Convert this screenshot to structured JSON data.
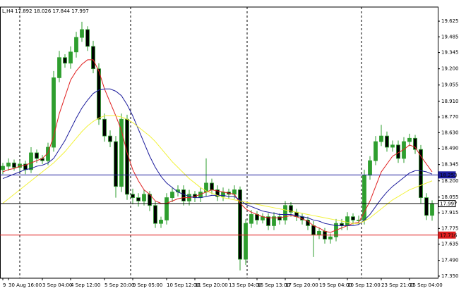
{
  "chart_data": {
    "type": "candlestick",
    "header": "L,H4",
    "categories": [
      "9",
      "30 Aug 16:00",
      null,
      null,
      null,
      null,
      null,
      "3 Sep 04:00",
      null,
      null,
      null,
      null,
      "4 Sep 12:00",
      null,
      null,
      null,
      null,
      null,
      "5 Sep 20:00",
      null,
      null,
      null,
      null,
      "9 Sep 05:00",
      null,
      null,
      null,
      null,
      null,
      "10 Sep 12:00",
      null,
      null,
      null,
      null,
      "11 Sep 20:00",
      null,
      null,
      null,
      null,
      null,
      "13 Sep 04:00",
      null,
      null,
      null,
      null,
      "16 Sep 13:00",
      null,
      null,
      null,
      null,
      "17 Sep 20:00",
      null,
      null,
      null,
      null,
      null,
      "19 Sep 04:00",
      null,
      null,
      null,
      null,
      "20 Sep 12:00",
      null,
      null,
      null,
      null,
      null,
      "23 Sep 21:00",
      null,
      null,
      null,
      null,
      "25 Sep 04:00",
      null,
      null,
      null,
      null
    ],
    "open": [
      18.3,
      18.33,
      18.36,
      18.32,
      18.35,
      18.3,
      18.45,
      18.4,
      18.38,
      18.5,
      19.12,
      19.3,
      19.25,
      19.35,
      19.48,
      19.55,
      19.4,
      19.2,
      18.75,
      18.6,
      18.55,
      18.15,
      18.75,
      18.08,
      18.05,
      18.02,
      18.08,
      17.98,
      17.82,
      17.85,
      18.05,
      18.1,
      18.12,
      18.02,
      18.08,
      18.05,
      18.1,
      18.18,
      18.12,
      18.06,
      18.1,
      18.08,
      18.12,
      17.5,
      17.82,
      17.9,
      17.85,
      17.88,
      17.8,
      17.88,
      17.85,
      17.98,
      17.92,
      17.88,
      17.85,
      17.8,
      17.72,
      17.75,
      17.68,
      17.7,
      17.82,
      17.8,
      17.88,
      17.85,
      17.85,
      18.25,
      18.38,
      18.55,
      18.6,
      18.5,
      18.52,
      18.4,
      18.55,
      18.58,
      18.48,
      18.05,
      17.892
    ],
    "high": [
      18.36,
      18.4,
      18.39,
      18.38,
      18.38,
      18.5,
      18.48,
      18.43,
      18.54,
      19.18,
      19.36,
      19.33,
      19.4,
      19.53,
      19.62,
      19.58,
      19.45,
      19.25,
      18.8,
      18.65,
      18.6,
      18.8,
      18.79,
      18.13,
      18.09,
      18.12,
      18.11,
      18.02,
      17.88,
      18.09,
      18.14,
      18.16,
      18.16,
      18.12,
      18.11,
      18.14,
      18.4,
      18.22,
      18.16,
      18.14,
      18.13,
      18.16,
      18.15,
      17.86,
      17.94,
      17.93,
      17.91,
      17.91,
      17.92,
      17.91,
      18.02,
      18.01,
      17.95,
      17.91,
      17.88,
      17.84,
      17.78,
      17.78,
      17.73,
      17.86,
      17.86,
      17.92,
      17.91,
      17.89,
      18.3,
      18.42,
      18.6,
      18.7,
      18.64,
      18.56,
      18.56,
      18.59,
      18.62,
      18.61,
      18.52,
      18.09,
      18.026
    ],
    "low": [
      18.26,
      18.29,
      18.29,
      18.28,
      18.26,
      18.27,
      18.36,
      18.35,
      18.34,
      18.46,
      19.08,
      19.21,
      19.2,
      19.3,
      19.44,
      19.36,
      19.16,
      18.7,
      18.55,
      18.5,
      18.05,
      18.1,
      18.03,
      17.99,
      17.97,
      17.98,
      17.93,
      17.78,
      17.78,
      17.81,
      18.01,
      18.06,
      17.98,
      17.98,
      18.01,
      18.01,
      18.06,
      18.08,
      18.02,
      18.02,
      18.04,
      18.04,
      17.4,
      17.45,
      17.78,
      17.81,
      17.82,
      17.76,
      17.76,
      17.81,
      17.81,
      17.88,
      17.84,
      17.81,
      17.76,
      17.52,
      17.68,
      17.64,
      17.64,
      17.66,
      17.76,
      17.76,
      17.81,
      17.81,
      17.81,
      18.21,
      18.34,
      18.51,
      18.46,
      18.46,
      18.36,
      18.36,
      18.51,
      18.44,
      18.0,
      17.85,
      17.844
    ],
    "close": [
      18.33,
      18.36,
      18.32,
      18.35,
      18.3,
      18.45,
      18.4,
      18.38,
      18.5,
      19.12,
      19.3,
      19.25,
      19.35,
      19.48,
      19.55,
      19.4,
      19.2,
      18.75,
      18.6,
      18.55,
      18.15,
      18.75,
      18.08,
      18.05,
      18.02,
      18.08,
      17.98,
      17.82,
      17.85,
      18.05,
      18.1,
      18.12,
      18.02,
      18.08,
      18.05,
      18.1,
      18.18,
      18.12,
      18.06,
      18.1,
      18.08,
      18.12,
      17.5,
      17.82,
      17.9,
      17.85,
      17.88,
      17.8,
      17.88,
      17.85,
      17.98,
      17.92,
      17.88,
      17.85,
      17.8,
      17.72,
      17.75,
      17.68,
      17.7,
      17.82,
      17.8,
      17.88,
      17.85,
      17.85,
      18.25,
      18.38,
      18.55,
      18.6,
      18.5,
      18.52,
      18.4,
      18.55,
      18.58,
      18.48,
      18.05,
      17.892,
      17.997
    ],
    "bull_color": "#2e9e2e",
    "bear_color": "#000000",
    "wick_color": "#2e9e2e",
    "moving_averages": [
      {
        "color": "#e02020",
        "values": [
          18.28,
          18.3,
          18.31,
          18.33,
          18.34,
          18.36,
          18.38,
          18.4,
          18.45,
          18.6,
          18.8,
          18.95,
          19.1,
          19.18,
          19.24,
          19.28,
          19.28,
          19.18,
          19.02,
          18.9,
          18.78,
          18.65,
          18.45,
          18.3,
          18.2,
          18.12,
          18.08,
          18.02,
          18.0,
          18.0,
          18.02,
          18.04,
          18.05,
          18.05,
          18.06,
          18.08,
          18.1,
          18.12,
          18.11,
          18.1,
          18.09,
          18.08,
          18.0,
          17.95,
          17.92,
          17.9,
          17.88,
          17.87,
          17.87,
          17.87,
          17.88,
          17.89,
          17.88,
          17.86,
          17.84,
          17.8,
          17.78,
          17.75,
          17.74,
          17.76,
          17.78,
          17.8,
          17.82,
          17.83,
          17.92,
          18.02,
          18.15,
          18.28,
          18.35,
          18.42,
          18.45,
          18.48,
          18.52,
          18.5,
          18.42,
          18.35,
          18.28
        ]
      },
      {
        "color": "#1c1c9c",
        "values": [
          18.22,
          18.24,
          18.26,
          18.28,
          18.3,
          18.31,
          18.33,
          18.34,
          18.36,
          18.4,
          18.48,
          18.56,
          18.66,
          18.76,
          18.85,
          18.92,
          18.98,
          19.01,
          19.02,
          19.02,
          19.0,
          18.96,
          18.88,
          18.78,
          18.66,
          18.54,
          18.42,
          18.32,
          18.24,
          18.18,
          18.14,
          18.1,
          18.08,
          18.06,
          18.05,
          18.05,
          18.06,
          18.07,
          18.07,
          18.07,
          18.06,
          18.06,
          18.03,
          17.99,
          17.97,
          17.95,
          17.93,
          17.92,
          17.91,
          17.9,
          17.9,
          17.9,
          17.89,
          17.88,
          17.87,
          17.85,
          17.84,
          17.82,
          17.81,
          17.8,
          17.8,
          17.8,
          17.8,
          17.81,
          17.85,
          17.9,
          17.97,
          18.04,
          18.1,
          18.15,
          18.19,
          18.23,
          18.27,
          18.29,
          18.29,
          18.28,
          18.26
        ]
      },
      {
        "color": "#f2f23a",
        "values": [
          18.0,
          18.04,
          18.08,
          18.12,
          18.16,
          18.2,
          18.24,
          18.28,
          18.32,
          18.36,
          18.41,
          18.46,
          18.52,
          18.58,
          18.64,
          18.69,
          18.73,
          18.76,
          18.78,
          18.78,
          18.78,
          18.77,
          18.75,
          18.72,
          18.68,
          18.64,
          18.6,
          18.55,
          18.49,
          18.43,
          18.37,
          18.32,
          18.27,
          18.22,
          18.18,
          18.14,
          18.11,
          18.09,
          18.07,
          18.05,
          18.04,
          18.03,
          18.02,
          18.01,
          18.0,
          17.99,
          17.98,
          17.97,
          17.96,
          17.95,
          17.94,
          17.93,
          17.92,
          17.91,
          17.9,
          17.89,
          17.88,
          17.87,
          17.86,
          17.85,
          17.84,
          17.83,
          17.82,
          17.82,
          17.84,
          17.87,
          17.91,
          17.95,
          17.99,
          18.03,
          18.06,
          18.09,
          18.12,
          18.14,
          18.16,
          18.18,
          18.2
        ]
      }
    ],
    "levels": [
      {
        "value": 18.253,
        "color": "#1c1c9c"
      },
      {
        "value": 17.997,
        "color": "#000000"
      },
      {
        "value": 17.716,
        "color": "#e02020"
      }
    ],
    "ylim": [
      17.331,
      19.751
    ],
    "yticks": [
      19.625,
      19.485,
      19.345,
      {
        "value": 19.2,
        "label": "19.200"
      },
      19.055,
      {
        "value": 18.91,
        "label": "18.910"
      },
      {
        "value": 18.77,
        "label": "18.770"
      },
      {
        "value": 18.63,
        "label": "18.630"
      },
      {
        "value": 18.49,
        "label": "18.490"
      },
      18.345,
      {
        "value": 18.2,
        "label": "18.200"
      },
      18.055,
      17.915,
      17.775,
      17.635,
      {
        "value": 17.49,
        "label": "17.490"
      },
      {
        "value": 17.35,
        "label": "17.350"
      }
    ]
  }
}
